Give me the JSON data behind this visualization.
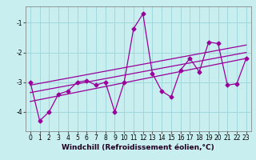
{
  "xlabel": "Windchill (Refroidissement éolien,°C)",
  "ylabel": "",
  "bg_color": "#c8eef0",
  "grid_color": "#a0d8dc",
  "line_color": "#990099",
  "x_data": [
    0,
    1,
    2,
    3,
    4,
    5,
    6,
    7,
    8,
    9,
    10,
    11,
    12,
    13,
    14,
    15,
    16,
    17,
    18,
    19,
    20,
    21,
    22,
    23
  ],
  "y_main": [
    -3.0,
    -4.3,
    -4.0,
    -3.4,
    -3.3,
    -3.0,
    -2.95,
    -3.1,
    -3.0,
    -4.0,
    -3.0,
    -1.2,
    -0.7,
    -2.7,
    -3.3,
    -3.5,
    -2.6,
    -2.2,
    -2.65,
    -1.65,
    -1.7,
    -3.1,
    -3.05,
    -2.2
  ],
  "trend1_x": [
    0,
    23
  ],
  "trend1_y": [
    -3.1,
    -1.75
  ],
  "trend2_x": [
    0,
    23
  ],
  "trend2_y": [
    -3.35,
    -2.0
  ],
  "trend3_x": [
    0,
    23
  ],
  "trend3_y": [
    -3.65,
    -2.2
  ],
  "ylim": [
    -4.65,
    -0.45
  ],
  "xlim": [
    -0.5,
    23.5
  ],
  "xticks": [
    0,
    1,
    2,
    3,
    4,
    5,
    6,
    7,
    8,
    9,
    10,
    11,
    12,
    13,
    14,
    15,
    16,
    17,
    18,
    19,
    20,
    21,
    22,
    23
  ],
  "yticks": [
    -4,
    -3,
    -2,
    -1
  ],
  "marker": "D",
  "markersize": 2.5,
  "linewidth": 0.9,
  "xlabel_fontsize": 6.5,
  "tick_fontsize": 5.5
}
